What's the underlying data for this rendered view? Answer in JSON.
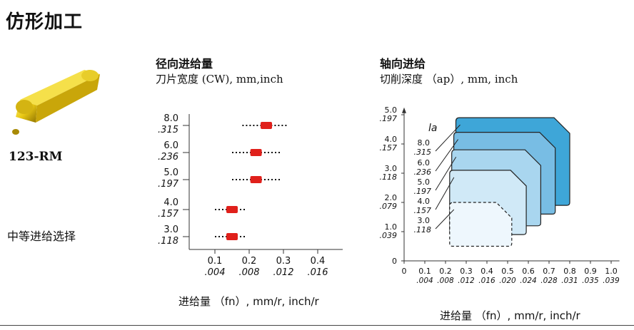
{
  "page": {
    "title": "仿形加工",
    "insert_code": "123-RM",
    "selection_note": "中等进给选择"
  },
  "left_chart": {
    "heading": "径向进给量",
    "subheading": "刀片宽度 (CW), mm,inch",
    "xlabel": "进给量 （fn）, mm/r, inch/r",
    "accent_color": "#e0201b",
    "chart_data": {
      "type": "scatter",
      "y_categories": [
        {
          "metric": "8.0",
          "inch": ".315"
        },
        {
          "metric": "6.0",
          "inch": ".236"
        },
        {
          "metric": "5.0",
          "inch": ".197"
        },
        {
          "metric": "4.0",
          "inch": ".157"
        },
        {
          "metric": "3.0",
          "inch": ".118"
        }
      ],
      "x_ticks": [
        {
          "metric": "0.1",
          "inch": ".004"
        },
        {
          "metric": "0.2",
          "inch": ".008"
        },
        {
          "metric": "0.3",
          "inch": ".012"
        },
        {
          "metric": "0.4",
          "inch": ".016"
        }
      ],
      "xlim": [
        0,
        0.45
      ],
      "points": [
        {
          "category": "8.0",
          "recommended": 0.25,
          "min": 0.18,
          "max": 0.31
        },
        {
          "category": "6.0",
          "recommended": 0.22,
          "min": 0.15,
          "max": 0.29
        },
        {
          "category": "5.0",
          "recommended": 0.22,
          "min": 0.15,
          "max": 0.29
        },
        {
          "category": "4.0",
          "recommended": 0.15,
          "min": 0.1,
          "max": 0.19
        },
        {
          "category": "3.0",
          "recommended": 0.15,
          "min": 0.1,
          "max": 0.19
        }
      ]
    }
  },
  "right_chart": {
    "heading": "轴向进给",
    "subheading": "切削深度 （ap）, mm, inch",
    "xlabel": "进给量 （fn）, mm/r, inch/r",
    "la_label": "la",
    "chart_data": {
      "type": "area",
      "y_ticks": [
        {
          "metric": "5.0",
          "inch": ".197",
          "value": 5.0
        },
        {
          "metric": "4.0",
          "inch": ".157",
          "value": 4.0
        },
        {
          "metric": "3.0",
          "inch": ".118",
          "value": 3.0
        },
        {
          "metric": "2.0",
          "inch": ".079",
          "value": 2.0
        },
        {
          "metric": "1.0",
          "inch": ".039",
          "value": 1.0
        },
        {
          "metric": "0",
          "inch": "",
          "value": 0
        }
      ],
      "x_ticks": [
        {
          "metric": "0",
          "inch": "",
          "value": 0
        },
        {
          "metric": "0.1",
          "inch": ".004",
          "value": 0.1
        },
        {
          "metric": "0.2",
          "inch": ".008",
          "value": 0.2
        },
        {
          "metric": "0.3",
          "inch": ".012",
          "value": 0.3
        },
        {
          "metric": "0.4",
          "inch": ".016",
          "value": 0.4
        },
        {
          "metric": "0.5",
          "inch": ".020",
          "value": 0.5
        },
        {
          "metric": "0.6",
          "inch": ".024",
          "value": 0.6
        },
        {
          "metric": "0.7",
          "inch": ".028",
          "value": 0.7
        },
        {
          "metric": "0.8",
          "inch": ".031",
          "value": 0.8
        },
        {
          "metric": "0.9",
          "inch": ".035",
          "value": 0.9
        },
        {
          "metric": "1.0",
          "inch": ".039",
          "value": 1.0
        }
      ],
      "xlim": [
        0,
        1.0
      ],
      "ylim": [
        0,
        5.0
      ],
      "series": [
        {
          "name": "8.0 .315",
          "fn_min": 0.25,
          "fn_max": 0.8,
          "ap_min": 1.9,
          "ap_max": 4.9,
          "color": "#3ea6d8",
          "dashed": false
        },
        {
          "name": "6.0 .236",
          "fn_min": 0.24,
          "fn_max": 0.73,
          "ap_min": 1.6,
          "ap_max": 4.4,
          "color": "#78bde4",
          "dashed": false
        },
        {
          "name": "5.0 .197",
          "fn_min": 0.23,
          "fn_max": 0.66,
          "ap_min": 1.2,
          "ap_max": 3.8,
          "color": "#a9d6ef",
          "dashed": false
        },
        {
          "name": "4.0 .157",
          "fn_min": 0.22,
          "fn_max": 0.59,
          "ap_min": 0.9,
          "ap_max": 3.1,
          "color": "#d0e9f7",
          "dashed": false
        },
        {
          "name": "3.0 .118",
          "fn_min": 0.22,
          "fn_max": 0.52,
          "ap_min": 0.5,
          "ap_max": 2.0,
          "color": "#eef7fd",
          "dashed": true
        }
      ],
      "la_labels": [
        {
          "metric": "8.0",
          "inch": ".315"
        },
        {
          "metric": "6.0",
          "inch": ".236"
        },
        {
          "metric": "5.0",
          "inch": ".197"
        },
        {
          "metric": "4.0",
          "inch": ".157"
        },
        {
          "metric": "3.0",
          "inch": ".118"
        }
      ]
    }
  }
}
